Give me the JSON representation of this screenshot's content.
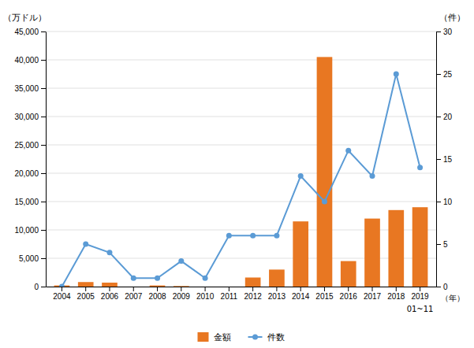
{
  "chart_data": {
    "type": "bar",
    "categories": [
      "2004",
      "2005",
      "2006",
      "2007",
      "2008",
      "2009",
      "2010",
      "2011",
      "2012",
      "2013",
      "2014",
      "2015",
      "2016",
      "2017",
      "2018",
      "2019"
    ],
    "series": [
      {
        "name": "金額",
        "type": "bar",
        "color": "#E87722",
        "values": [
          200,
          800,
          700,
          0,
          200,
          100,
          0,
          0,
          1600,
          3000,
          11500,
          40500,
          4500,
          12000,
          13500,
          14000
        ]
      },
      {
        "name": "件数",
        "type": "line",
        "color": "#5B9BD5",
        "marker": "circle",
        "axis": "y2",
        "values": [
          0,
          5,
          4,
          1,
          1,
          3,
          1,
          6,
          6,
          6,
          13,
          10,
          16,
          13,
          25,
          14
        ]
      }
    ],
    "ylabel": "（万ドル）",
    "y2label": "（件）",
    "xlabel": "（年）",
    "annotations": [
      {
        "text": "01~11",
        "x": "2019"
      }
    ],
    "ylim": [
      0,
      45000
    ],
    "yticks": [
      0,
      {
        "value": 5000,
        "label": "5,000"
      },
      {
        "value": 10000,
        "label": "10,000"
      },
      {
        "value": 15000,
        "label": "15,000"
      },
      {
        "value": 20000,
        "label": "20,000"
      },
      {
        "value": 25000,
        "label": "25,000"
      },
      {
        "value": 30000,
        "label": "30,000"
      },
      {
        "value": 35000,
        "label": "35,000"
      },
      {
        "value": 40000,
        "label": "40,000"
      },
      {
        "value": 45000,
        "label": "45,000"
      }
    ],
    "y2lim": [
      0,
      30
    ],
    "y2ticks": [
      0,
      5,
      10,
      15,
      20,
      25,
      30
    ],
    "grid": true,
    "legend": "bottom"
  }
}
